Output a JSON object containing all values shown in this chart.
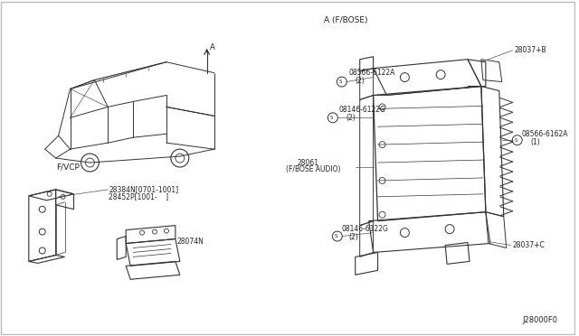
{
  "bg_color": "#ffffff",
  "border_color": "#cccccc",
  "line_color": "#333333",
  "text_color": "#222222",
  "diagram_id": "J28000F0",
  "labels": {
    "section_a": "A (F/BOSE)",
    "section_fvcp": "F/VCP",
    "arrow_a": "A",
    "part_28037b": "28037+B",
    "part_28037c": "28037+C",
    "part_28061": "28061",
    "part_28061_sub": "(F/BOSE AUDIO)",
    "part_28074n": "28074N",
    "part_28384n": "28384N[0701-1001]",
    "part_28452p": "28452P[1001-    ]",
    "bolt1_label": "08566-6122A",
    "bolt1_qty": "(2)",
    "bolt2_label": "08146-6122G",
    "bolt2_qty": "(2)",
    "bolt3_label": "08566-6162A",
    "bolt3_qty": "(1)",
    "bolt4_label": "08146-6122G",
    "bolt4_qty": "(2)"
  },
  "figsize": [
    6.4,
    3.72
  ],
  "dpi": 100
}
